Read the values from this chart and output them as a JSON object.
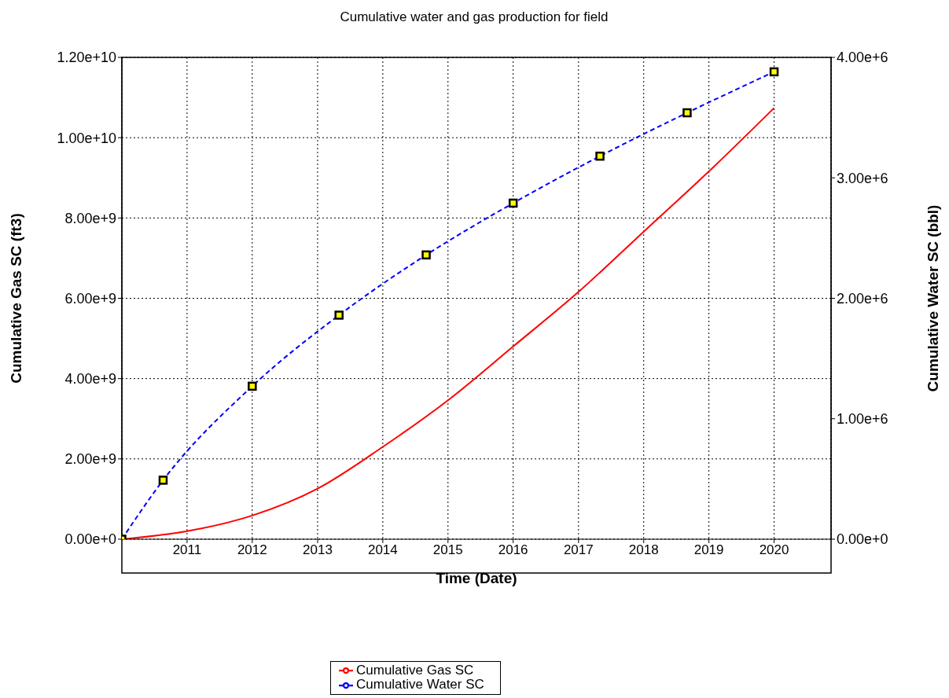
{
  "chart_data": {
    "type": "line",
    "title": "Cumulative water and gas production for field",
    "xlabel": "Time (Date)",
    "ylabel": "Cumulative Gas SC (ft3)",
    "y2label": "Cumulative Water SC (bbl)",
    "xlim": [
      "2010-01-01",
      "2020-11-15"
    ],
    "xticks": [
      "2011",
      "2012",
      "2013",
      "2014",
      "2015",
      "2016",
      "2017",
      "2018",
      "2019",
      "2020"
    ],
    "ylim": [
      0,
      12000000000
    ],
    "yticks": [
      {
        "value": 0,
        "label": "0.00e+0"
      },
      {
        "value": 2000000000,
        "label": "2.00e+9"
      },
      {
        "value": 4000000000,
        "label": "4.00e+9"
      },
      {
        "value": 6000000000,
        "label": "6.00e+9"
      },
      {
        "value": 8000000000,
        "label": "8.00e+9"
      },
      {
        "value": 10000000000,
        "label": "1.00e+10"
      },
      {
        "value": 12000000000,
        "label": "1.20e+10"
      }
    ],
    "y2lim": [
      0,
      4000000
    ],
    "y2ticks": [
      {
        "value": 0,
        "label": "0.00e+0"
      },
      {
        "value": 1000000,
        "label": "1.00e+6"
      },
      {
        "value": 2000000,
        "label": "2.00e+6"
      },
      {
        "value": 3000000,
        "label": "3.00e+6"
      },
      {
        "value": 4000000,
        "label": "4.00e+6"
      }
    ],
    "grid": true,
    "legend": "bottom",
    "series": [
      {
        "name": "Cumulative Gas SC",
        "color": "#ff0000",
        "line_style": "solid",
        "marker": "none",
        "x": [
          "2010-01-01",
          "2011-01-01",
          "2012-01-01",
          "2013-01-01",
          "2014-01-01",
          "2015-01-01",
          "2016-01-01",
          "2017-01-01",
          "2018-01-01",
          "2019-01-01",
          "2020-01-01"
        ],
        "values": [
          0,
          200000000,
          590000000,
          1260000000,
          2300000000,
          3460000000,
          4800000000,
          6160000000,
          7660000000,
          9160000000,
          10740000000
        ]
      },
      {
        "name": "Cumulative Water SC",
        "color": "#0000ff",
        "line_style": "dashed",
        "marker": "square",
        "axis": "y2",
        "x": [
          "2010-01-01",
          "2010-08-20",
          "2012-01-01",
          "2013-05-01",
          "2014-09-01",
          "2016-01-01",
          "2017-05-01",
          "2018-09-01",
          "2020-01-01"
        ],
        "values": [
          0,
          490000,
          1270000,
          1860000,
          2360000,
          2790000,
          3180000,
          3540000,
          3880000
        ]
      }
    ]
  }
}
